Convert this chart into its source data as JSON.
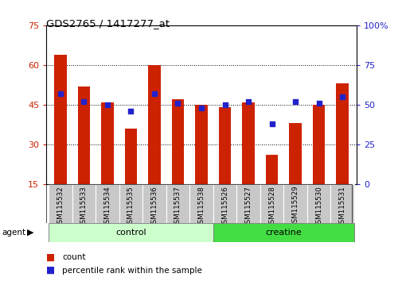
{
  "title": "GDS2765 / 1417277_at",
  "categories": [
    "GSM115532",
    "GSM115533",
    "GSM115534",
    "GSM115535",
    "GSM115536",
    "GSM115537",
    "GSM115538",
    "GSM115526",
    "GSM115527",
    "GSM115528",
    "GSM115529",
    "GSM115530",
    "GSM115531"
  ],
  "count_values": [
    64,
    52,
    46,
    36,
    60,
    47,
    45,
    44,
    46,
    26,
    38,
    45,
    53
  ],
  "percentile_values": [
    57,
    52,
    50,
    46,
    57,
    51,
    48,
    50,
    52,
    38,
    52,
    51,
    55
  ],
  "y_min": 15,
  "y_max": 75,
  "y_ticks_left": [
    15,
    30,
    45,
    60,
    75
  ],
  "y_ticks_right_vals": [
    0,
    25,
    50,
    75,
    100
  ],
  "y_ticks_right_labels": [
    "0",
    "25",
    "50",
    "75",
    "100%"
  ],
  "bar_color": "#CC2200",
  "dot_color": "#2222CC",
  "control_color": "#CCFFCC",
  "creatine_color": "#44DD44",
  "control_label": "control",
  "creatine_label": "creatine",
  "control_indices": [
    0,
    1,
    2,
    3,
    4,
    5,
    6
  ],
  "creatine_indices": [
    7,
    8,
    9,
    10,
    11,
    12
  ],
  "agent_label": "agent",
  "legend_count": "count",
  "legend_percentile": "percentile rank within the sample",
  "background_color": "#FFFFFF",
  "tick_area_color": "#C8C8C8"
}
